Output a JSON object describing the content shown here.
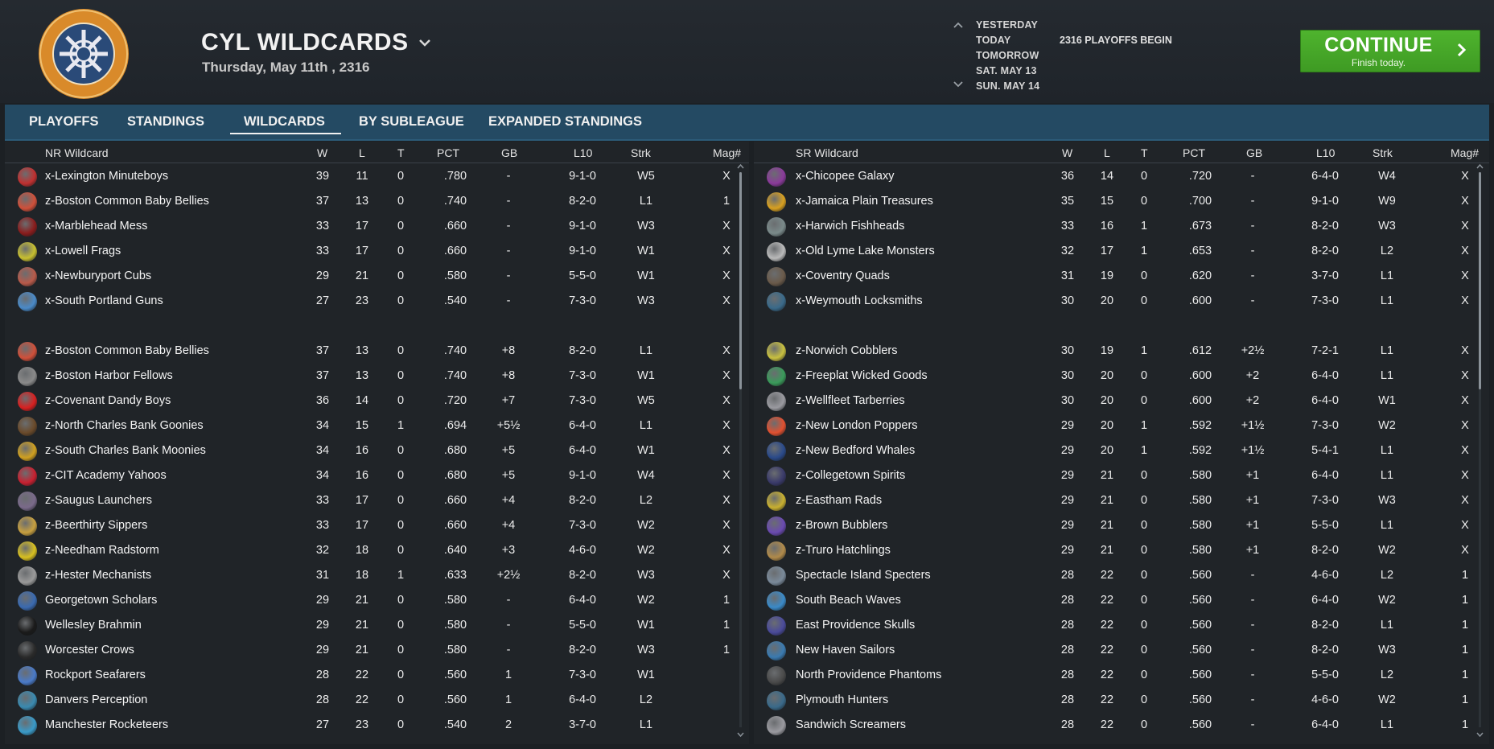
{
  "header": {
    "league_title": "CYL WILDCARDS",
    "date": "Thursday, May 11th , 2316",
    "logo_icon": "commonwealth-youth-logo",
    "days": [
      "YESTERDAY",
      "TODAY",
      "TOMORROW",
      "SAT. MAY 13",
      "SUN. MAY 14"
    ],
    "event": "2316 PLAYOFFS BEGIN",
    "continue_label": "CONTINUE",
    "continue_sub": "Finish today.",
    "continue_color": "#45a828"
  },
  "tabs": [
    "PLAYOFFS",
    "STANDINGS",
    "WILDCARDS",
    "BY SUBLEAGUE",
    "EXPANDED STANDINGS"
  ],
  "active_tab": "WILDCARDS",
  "left": {
    "title": "NR  Wildcard",
    "columns": {
      "w": "W",
      "l": "L",
      "t": "T",
      "pct": "PCT",
      "gb": "GB",
      "l10": "L10",
      "strk": "Strk",
      "mag": "Mag#"
    },
    "rows": [
      {
        "team": "x-Lexington Minuteboys",
        "w": "39",
        "l": "11",
        "t": "0",
        "pct": ".780",
        "gb": "-",
        "l10": "9-1-0",
        "strk": "W5",
        "mag": "X",
        "color": "#c03030"
      },
      {
        "team": "z-Boston Common Baby Bellies",
        "w": "37",
        "l": "13",
        "t": "0",
        "pct": ".740",
        "gb": "-",
        "l10": "8-2-0",
        "strk": "L1",
        "mag": "1",
        "color": "#d0503a"
      },
      {
        "team": "x-Marblehead Mess",
        "w": "33",
        "l": "17",
        "t": "0",
        "pct": ".660",
        "gb": "-",
        "l10": "9-1-0",
        "strk": "W3",
        "mag": "X",
        "color": "#8a1c1c"
      },
      {
        "team": "x-Lowell Frags",
        "w": "33",
        "l": "17",
        "t": "0",
        "pct": ".660",
        "gb": "-",
        "l10": "9-1-0",
        "strk": "W1",
        "mag": "X",
        "color": "#c8c030"
      },
      {
        "team": "x-Newburyport Cubs",
        "w": "29",
        "l": "21",
        "t": "0",
        "pct": ".580",
        "gb": "-",
        "l10": "5-5-0",
        "strk": "W1",
        "mag": "X",
        "color": "#b85a4a"
      },
      {
        "team": "x-South Portland Guns",
        "w": "27",
        "l": "23",
        "t": "0",
        "pct": ".540",
        "gb": "-",
        "l10": "7-3-0",
        "strk": "W3",
        "mag": "X",
        "color": "#4a8ac8"
      },
      {
        "team": "",
        "w": "",
        "l": "",
        "t": "",
        "pct": "",
        "gb": "",
        "l10": "",
        "strk": "",
        "mag": "",
        "color": ""
      },
      {
        "team": "z-Boston Common Baby Bellies",
        "w": "37",
        "l": "13",
        "t": "0",
        "pct": ".740",
        "gb": "+8",
        "l10": "8-2-0",
        "strk": "L1",
        "mag": "X",
        "color": "#d0503a"
      },
      {
        "team": "z-Boston Harbor Fellows",
        "w": "37",
        "l": "13",
        "t": "0",
        "pct": ".740",
        "gb": "+8",
        "l10": "7-3-0",
        "strk": "W1",
        "mag": "X",
        "color": "#8a8a8a"
      },
      {
        "team": "z-Covenant Dandy Boys",
        "w": "36",
        "l": "14",
        "t": "0",
        "pct": ".720",
        "gb": "+7",
        "l10": "7-3-0",
        "strk": "W5",
        "mag": "X",
        "color": "#d82020"
      },
      {
        "team": "z-North Charles Bank Goonies",
        "w": "34",
        "l": "15",
        "t": "1",
        "pct": ".694",
        "gb": "+5½",
        "l10": "6-4-0",
        "strk": "L1",
        "mag": "X",
        "color": "#6a4a2a"
      },
      {
        "team": "z-South Charles Bank Moonies",
        "w": "34",
        "l": "16",
        "t": "0",
        "pct": ".680",
        "gb": "+5",
        "l10": "6-4-0",
        "strk": "W1",
        "mag": "X",
        "color": "#d0a020"
      },
      {
        "team": "z-CIT Academy Yahoos",
        "w": "34",
        "l": "16",
        "t": "0",
        "pct": ".680",
        "gb": "+5",
        "l10": "9-1-0",
        "strk": "W4",
        "mag": "X",
        "color": "#c82030"
      },
      {
        "team": "z-Saugus Launchers",
        "w": "33",
        "l": "17",
        "t": "0",
        "pct": ".660",
        "gb": "+4",
        "l10": "8-2-0",
        "strk": "L2",
        "mag": "X",
        "color": "#7a6a8a"
      },
      {
        "team": "z-Beerthirty Sippers",
        "w": "33",
        "l": "17",
        "t": "0",
        "pct": ".660",
        "gb": "+4",
        "l10": "7-3-0",
        "strk": "W2",
        "mag": "X",
        "color": "#c8a040"
      },
      {
        "team": "z-Needham Radstorm",
        "w": "32",
        "l": "18",
        "t": "0",
        "pct": ".640",
        "gb": "+3",
        "l10": "4-6-0",
        "strk": "W2",
        "mag": "X",
        "color": "#d8c020"
      },
      {
        "team": "z-Hester Mechanists",
        "w": "31",
        "l": "18",
        "t": "1",
        "pct": ".633",
        "gb": "+2½",
        "l10": "8-2-0",
        "strk": "W3",
        "mag": "X",
        "color": "#9a9a9a"
      },
      {
        "team": "Georgetown Scholars",
        "w": "29",
        "l": "21",
        "t": "0",
        "pct": ".580",
        "gb": "-",
        "l10": "6-4-0",
        "strk": "W2",
        "mag": "1",
        "color": "#3a6ab0"
      },
      {
        "team": "Wellesley Brahmin",
        "w": "29",
        "l": "21",
        "t": "0",
        "pct": ".580",
        "gb": "-",
        "l10": "5-5-0",
        "strk": "W1",
        "mag": "1",
        "color": "#1a1a1a"
      },
      {
        "team": "Worcester Crows",
        "w": "29",
        "l": "21",
        "t": "0",
        "pct": ".580",
        "gb": "-",
        "l10": "8-2-0",
        "strk": "W3",
        "mag": "1",
        "color": "#2a2a2a"
      },
      {
        "team": "Rockport Seafarers",
        "w": "28",
        "l": "22",
        "t": "0",
        "pct": ".560",
        "gb": "1",
        "l10": "7-3-0",
        "strk": "W1",
        "mag": "",
        "color": "#4a7ac8"
      },
      {
        "team": "Danvers Perception",
        "w": "28",
        "l": "22",
        "t": "0",
        "pct": ".560",
        "gb": "1",
        "l10": "6-4-0",
        "strk": "L2",
        "mag": "",
        "color": "#3a8ab0"
      },
      {
        "team": "Manchester Rocketeers",
        "w": "27",
        "l": "23",
        "t": "0",
        "pct": ".540",
        "gb": "2",
        "l10": "3-7-0",
        "strk": "L1",
        "mag": "",
        "color": "#3a9ac8"
      }
    ]
  },
  "right": {
    "title": "SR  Wildcard",
    "columns": {
      "w": "W",
      "l": "L",
      "t": "T",
      "pct": "PCT",
      "gb": "GB",
      "l10": "L10",
      "strk": "Strk",
      "mag": "Mag#"
    },
    "rows": [
      {
        "team": "x-Chicopee Galaxy",
        "w": "36",
        "l": "14",
        "t": "0",
        "pct": ".720",
        "gb": "-",
        "l10": "6-4-0",
        "strk": "W4",
        "mag": "X",
        "color": "#8a3a9a"
      },
      {
        "team": "x-Jamaica Plain Treasures",
        "w": "35",
        "l": "15",
        "t": "0",
        "pct": ".700",
        "gb": "-",
        "l10": "9-1-0",
        "strk": "W9",
        "mag": "X",
        "color": "#d8a020"
      },
      {
        "team": "x-Harwich Fishheads",
        "w": "33",
        "l": "16",
        "t": "1",
        "pct": ".673",
        "gb": "-",
        "l10": "8-2-0",
        "strk": "W3",
        "mag": "X",
        "color": "#7a8a8a"
      },
      {
        "team": "x-Old Lyme Lake Monsters",
        "w": "32",
        "l": "17",
        "t": "1",
        "pct": ".653",
        "gb": "-",
        "l10": "8-2-0",
        "strk": "L2",
        "mag": "X",
        "color": "#bababa"
      },
      {
        "team": "x-Coventry Quads",
        "w": "31",
        "l": "19",
        "t": "0",
        "pct": ".620",
        "gb": "-",
        "l10": "3-7-0",
        "strk": "L1",
        "mag": "X",
        "color": "#6a5a4a"
      },
      {
        "team": "x-Weymouth Locksmiths",
        "w": "30",
        "l": "20",
        "t": "0",
        "pct": ".600",
        "gb": "-",
        "l10": "7-3-0",
        "strk": "L1",
        "mag": "X",
        "color": "#3a6a8a"
      },
      {
        "team": "",
        "w": "",
        "l": "",
        "t": "",
        "pct": "",
        "gb": "",
        "l10": "",
        "strk": "",
        "mag": "",
        "color": ""
      },
      {
        "team": "z-Norwich Cobblers",
        "w": "30",
        "l": "19",
        "t": "1",
        "pct": ".612",
        "gb": "+2½",
        "l10": "7-2-1",
        "strk": "L1",
        "mag": "X",
        "color": "#c8c040"
      },
      {
        "team": "z-Freeplat Wicked Goods",
        "w": "30",
        "l": "20",
        "t": "0",
        "pct": ".600",
        "gb": "+2",
        "l10": "6-4-0",
        "strk": "L1",
        "mag": "X",
        "color": "#3a9a5a"
      },
      {
        "team": "z-Wellfleet Tarberries",
        "w": "30",
        "l": "20",
        "t": "0",
        "pct": ".600",
        "gb": "+2",
        "l10": "6-4-0",
        "strk": "W1",
        "mag": "X",
        "color": "#9a9aa0"
      },
      {
        "team": "z-New London Poppers",
        "w": "29",
        "l": "20",
        "t": "1",
        "pct": ".592",
        "gb": "+1½",
        "l10": "7-3-0",
        "strk": "W2",
        "mag": "X",
        "color": "#e05030"
      },
      {
        "team": "z-New Bedford Whales",
        "w": "29",
        "l": "20",
        "t": "1",
        "pct": ".592",
        "gb": "+1½",
        "l10": "5-4-1",
        "strk": "L1",
        "mag": "X",
        "color": "#2a4a8a"
      },
      {
        "team": "z-Collegetown Spirits",
        "w": "29",
        "l": "21",
        "t": "0",
        "pct": ".580",
        "gb": "+1",
        "l10": "6-4-0",
        "strk": "L1",
        "mag": "X",
        "color": "#3a3a6a"
      },
      {
        "team": "z-Eastham Rads",
        "w": "29",
        "l": "21",
        "t": "0",
        "pct": ".580",
        "gb": "+1",
        "l10": "7-3-0",
        "strk": "W3",
        "mag": "X",
        "color": "#c8b030"
      },
      {
        "team": "z-Brown Bubblers",
        "w": "29",
        "l": "21",
        "t": "0",
        "pct": ".580",
        "gb": "+1",
        "l10": "5-5-0",
        "strk": "L1",
        "mag": "X",
        "color": "#6a4ab0"
      },
      {
        "team": "z-Truro Hatchlings",
        "w": "29",
        "l": "21",
        "t": "0",
        "pct": ".580",
        "gb": "+1",
        "l10": "8-2-0",
        "strk": "W2",
        "mag": "X",
        "color": "#b08a4a"
      },
      {
        "team": "Spectacle Island Specters",
        "w": "28",
        "l": "22",
        "t": "0",
        "pct": ".560",
        "gb": "-",
        "l10": "4-6-0",
        "strk": "L2",
        "mag": "1",
        "color": "#7a8a9a"
      },
      {
        "team": "South Beach Waves",
        "w": "28",
        "l": "22",
        "t": "0",
        "pct": ".560",
        "gb": "-",
        "l10": "6-4-0",
        "strk": "W2",
        "mag": "1",
        "color": "#3a8ac8"
      },
      {
        "team": "East Providence Skulls",
        "w": "28",
        "l": "22",
        "t": "0",
        "pct": ".560",
        "gb": "-",
        "l10": "8-2-0",
        "strk": "L1",
        "mag": "1",
        "color": "#4a4a9a"
      },
      {
        "team": "New Haven Sailors",
        "w": "28",
        "l": "22",
        "t": "0",
        "pct": ".560",
        "gb": "-",
        "l10": "8-2-0",
        "strk": "W3",
        "mag": "1",
        "color": "#3a7ab0"
      },
      {
        "team": "North Providence Phantoms",
        "w": "28",
        "l": "22",
        "t": "0",
        "pct": ".560",
        "gb": "-",
        "l10": "5-5-0",
        "strk": "L2",
        "mag": "1",
        "color": "#4a4a4a"
      },
      {
        "team": "Plymouth Hunters",
        "w": "28",
        "l": "22",
        "t": "0",
        "pct": ".560",
        "gb": "-",
        "l10": "4-6-0",
        "strk": "W2",
        "mag": "1",
        "color": "#3a6a8a"
      },
      {
        "team": "Sandwich Screamers",
        "w": "28",
        "l": "22",
        "t": "0",
        "pct": ".560",
        "gb": "-",
        "l10": "6-4-0",
        "strk": "L1",
        "mag": "1",
        "color": "#9a9aa0"
      }
    ]
  }
}
